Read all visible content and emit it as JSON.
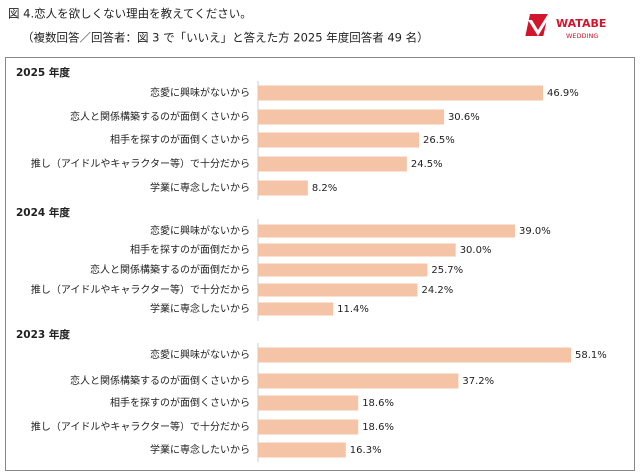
{
  "header": {
    "title": "図 4.恋人を欲しくない理由を教えてください。",
    "subtitle": "（複数回答／回答者：図 3 で「いいえ」と答えた方 2025 年度回答者 49 名）",
    "logo_top": "WATABE",
    "logo_bottom": "WEDDING"
  },
  "chart_data": [
    {
      "type": "hbar",
      "title": "2025 年度",
      "color": "#f5c4a6",
      "categories": [
        "恋愛に興味がないから",
        "恋人と関係構築するのが面倒くさいから",
        "相手を探すのが面倒くさいから",
        "推し（アイドルやキャラクター等）で十分だから",
        "学業に専念したいから"
      ],
      "values": [
        46.9,
        30.6,
        26.5,
        24.5,
        8.2
      ],
      "value_labels": [
        "46.9%",
        "30.6%",
        "26.5%",
        "24.5%",
        "8.2%"
      ]
    },
    {
      "type": "hbar",
      "title": "2024 年度",
      "color": "#f5c4a6",
      "categories": [
        "恋愛に興味がないから",
        "相手を探すのが面倒だから",
        "恋人と関係構築するのが面倒だから",
        "推し（アイドルやキャラクター等）で十分だから",
        "学業に専念したいから"
      ],
      "values": [
        39.0,
        30.0,
        25.7,
        24.2,
        11.4
      ],
      "value_labels": [
        "39.0%",
        "30.0%",
        "25.7%",
        "24.2%",
        "11.4%"
      ]
    },
    {
      "type": "hbar",
      "title": "2023 年度",
      "color": "#f5c4a6",
      "categories": [
        "恋愛に興味がないから",
        "恋人と関係構築するのが面倒くさいから",
        "相手を探すのが面倒くさいから",
        "推し（アイドルやキャラクター等）で十分だから",
        "学業に専念したいから"
      ],
      "values": [
        58.1,
        37.2,
        18.6,
        18.6,
        16.3
      ],
      "value_labels": [
        "58.1%",
        "37.2%",
        "18.6%",
        "18.6%",
        "16.3%"
      ]
    }
  ]
}
